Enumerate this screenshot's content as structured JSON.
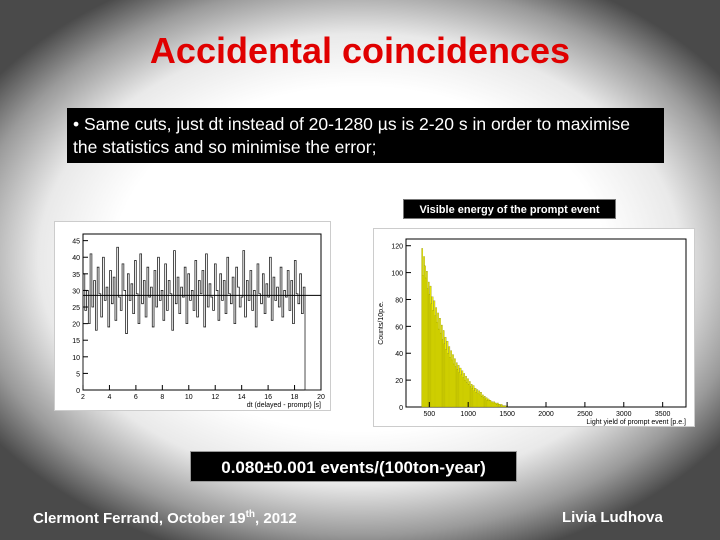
{
  "slide": {
    "title": "Accidental coincidences",
    "bullet": "• Same cuts, just dt instead of 20-1280 µs is 2-20 s in order to maximise the statistics and so minimise the error;",
    "plot_caption": "Visible energy of the prompt event",
    "result": "0.080±0.001 events/(100ton-year)",
    "footer_left_pre": "Clermont Ferrand, October 19",
    "footer_left_sup": "th",
    "footer_left_post": ", 2012",
    "footer_right": "Livia Ludhova"
  },
  "chart_data": [
    {
      "type": "bar",
      "xlabel": "dt (delayed - prompt) [s]",
      "ylabel": "",
      "xlim": [
        2,
        20
      ],
      "ylim": [
        0,
        47
      ],
      "x_ticks": [
        2,
        4,
        6,
        8,
        10,
        12,
        14,
        16,
        18,
        20
      ],
      "y_ticks": [
        0,
        5,
        10,
        15,
        20,
        25,
        30,
        35,
        40,
        45
      ],
      "fit_constant": 28.5,
      "values": [
        35,
        24,
        30,
        20,
        41,
        25,
        33,
        18,
        37,
        29,
        22,
        40,
        27,
        31,
        19,
        36,
        26,
        34,
        21,
        43,
        28,
        24,
        38,
        30,
        17,
        35,
        27,
        32,
        23,
        39,
        29,
        20,
        41,
        26,
        33,
        22,
        37,
        28,
        31,
        19,
        36,
        25,
        40,
        27,
        30,
        21,
        38,
        24,
        33,
        29,
        18,
        42,
        26,
        34,
        23,
        31,
        28,
        37,
        20,
        35,
        27,
        30,
        24,
        39,
        22,
        33,
        29,
        36,
        19,
        41,
        25,
        32,
        28,
        24,
        38,
        30,
        21,
        35,
        27,
        33,
        23,
        40,
        29,
        26,
        34,
        20,
        37,
        31,
        25,
        28,
        42,
        22,
        33,
        27,
        36,
        24,
        30,
        19,
        38,
        29,
        26,
        35,
        23,
        32,
        28,
        40,
        21,
        34,
        27,
        31,
        25,
        37,
        22,
        30,
        28,
        36,
        24,
        33,
        20,
        39,
        29,
        26,
        35,
        23,
        31,
        0,
        0,
        0,
        0,
        0,
        0,
        0,
        0,
        0
      ]
    },
    {
      "type": "bar",
      "title": "",
      "xlabel": "Light yield of prompt event [p.e.]",
      "ylabel": "Counts/10p.e.",
      "xlim": [
        200,
        3800
      ],
      "ylim": [
        0,
        125
      ],
      "x_ticks": [
        500,
        1000,
        1500,
        2000,
        2500,
        3000,
        3500
      ],
      "y_ticks": [
        0,
        20,
        40,
        60,
        80,
        100,
        120
      ],
      "color": "#f0f000",
      "values": [
        118,
        98,
        112,
        105,
        96,
        101,
        88,
        93,
        84,
        90,
        77,
        82,
        72,
        79,
        68,
        74,
        63,
        70,
        58,
        66,
        55,
        61,
        50,
        57,
        47,
        52,
        43,
        49,
        40,
        45,
        37,
        42,
        35,
        39,
        32,
        36,
        30,
        33,
        28,
        31,
        26,
        29,
        24,
        27,
        22,
        25,
        20,
        23,
        18,
        21,
        17,
        19,
        15,
        17,
        14,
        16,
        12,
        14,
        11,
        13,
        10,
        12,
        9,
        11,
        8,
        9,
        7,
        8,
        6,
        7,
        5,
        6,
        5,
        5,
        4,
        4,
        3,
        4,
        3,
        3,
        2,
        3,
        2,
        2,
        1,
        2,
        1,
        1,
        1,
        1,
        0,
        1,
        0,
        0,
        0,
        0,
        0,
        0,
        0,
        0
      ]
    }
  ]
}
